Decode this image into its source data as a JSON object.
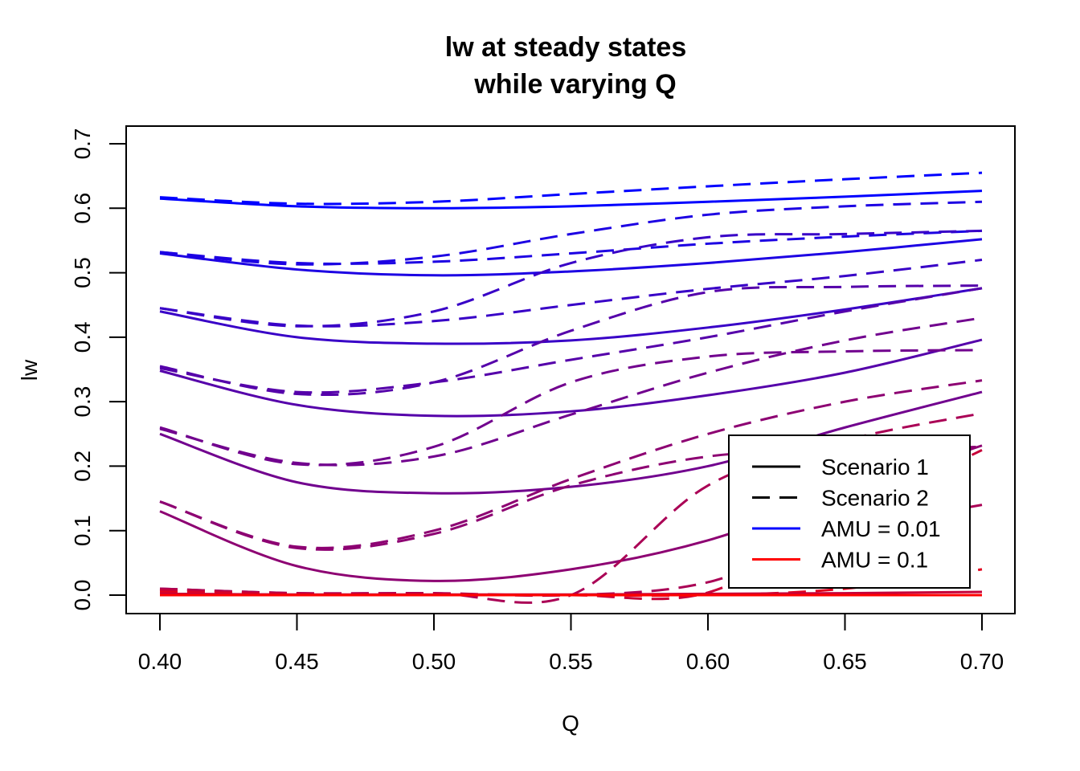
{
  "chart_data": {
    "type": "line",
    "title": "lw at steady states",
    "subtitle": "while varying Q",
    "xlabel": "Q",
    "ylabel": "lw",
    "xlim": [
      0.4,
      0.7
    ],
    "ylim": [
      0.0,
      0.7
    ],
    "x_ticks": [
      "0.40",
      "0.45",
      "0.50",
      "0.55",
      "0.60",
      "0.65",
      "0.70"
    ],
    "y_ticks": [
      "0.0",
      "0.1",
      "0.2",
      "0.3",
      "0.4",
      "0.5",
      "0.6",
      "0.7"
    ],
    "grid": false,
    "legend_position": "bottom-right",
    "legend": [
      {
        "label": "Scenario 1",
        "color": "#000000",
        "dash": "solid"
      },
      {
        "label": "Scenario 2",
        "color": "#000000",
        "dash": "dashed"
      },
      {
        "label": "AMU = 0.01",
        "color": "#0000FF",
        "dash": "solid"
      },
      {
        "label": "AMU = 0.1",
        "color": "#FF0000",
        "dash": "solid"
      }
    ],
    "x": [
      0.4,
      0.45,
      0.5,
      0.55,
      0.6,
      0.65,
      0.7
    ],
    "series": [
      {
        "amu": 0.01,
        "color": "#0000FF",
        "scenario": 1,
        "dash": "solid",
        "values": [
          0.615,
          0.603,
          0.6,
          0.603,
          0.61,
          0.618,
          0.627
        ]
      },
      {
        "amu": 0.01,
        "color": "#0000FF",
        "scenario": 2,
        "dash": "dashed",
        "values": [
          0.617,
          0.607,
          0.61,
          0.622,
          0.634,
          0.645,
          0.655
        ]
      },
      {
        "amu": 0.02,
        "color": "#1C00E3",
        "scenario": 1,
        "dash": "solid",
        "values": [
          0.53,
          0.505,
          0.496,
          0.502,
          0.515,
          0.532,
          0.552
        ]
      },
      {
        "amu": 0.02,
        "color": "#1C00E3",
        "scenario": 1,
        "dash": "dashed",
        "values": [
          0.532,
          0.515,
          0.517,
          0.53,
          0.545,
          0.556,
          0.565
        ]
      },
      {
        "amu": 0.02,
        "color": "#1C00E3",
        "scenario": 2,
        "dash": "dashed",
        "values": [
          0.532,
          0.513,
          0.525,
          0.56,
          0.59,
          0.603,
          0.61
        ]
      },
      {
        "amu": 0.03,
        "color": "#3800C7",
        "scenario": 1,
        "dash": "solid",
        "values": [
          0.44,
          0.4,
          0.39,
          0.395,
          0.415,
          0.443,
          0.476
        ]
      },
      {
        "amu": 0.03,
        "color": "#3800C7",
        "scenario": 1,
        "dash": "dashed",
        "values": [
          0.445,
          0.418,
          0.425,
          0.45,
          0.475,
          0.495,
          0.52
        ]
      },
      {
        "amu": 0.03,
        "color": "#3800C7",
        "scenario": 2,
        "dash": "dashed",
        "values": [
          0.445,
          0.417,
          0.44,
          0.515,
          0.555,
          0.56,
          0.565
        ]
      },
      {
        "amu": 0.04,
        "color": "#5500AA",
        "scenario": 1,
        "dash": "solid",
        "values": [
          0.348,
          0.295,
          0.278,
          0.285,
          0.31,
          0.345,
          0.396
        ]
      },
      {
        "amu": 0.04,
        "color": "#5500AA",
        "scenario": 1,
        "dash": "dashed",
        "values": [
          0.352,
          0.315,
          0.33,
          0.365,
          0.4,
          0.44,
          0.476
        ]
      },
      {
        "amu": 0.04,
        "color": "#5500AA",
        "scenario": 2,
        "dash": "dashed",
        "values": [
          0.355,
          0.312,
          0.33,
          0.41,
          0.47,
          0.478,
          0.48
        ]
      },
      {
        "amu": 0.05,
        "color": "#71008E",
        "scenario": 1,
        "dash": "solid",
        "values": [
          0.25,
          0.175,
          0.158,
          0.168,
          0.2,
          0.26,
          0.315
        ]
      },
      {
        "amu": 0.05,
        "color": "#71008E",
        "scenario": 1,
        "dash": "dashed",
        "values": [
          0.258,
          0.205,
          0.215,
          0.28,
          0.345,
          0.395,
          0.43
        ]
      },
      {
        "amu": 0.05,
        "color": "#71008E",
        "scenario": 2,
        "dash": "dashed",
        "values": [
          0.26,
          0.203,
          0.23,
          0.33,
          0.37,
          0.378,
          0.38
        ]
      },
      {
        "amu": 0.06,
        "color": "#8D0072",
        "scenario": 1,
        "dash": "solid",
        "values": [
          0.13,
          0.045,
          0.022,
          0.04,
          0.085,
          0.16,
          0.232
        ]
      },
      {
        "amu": 0.06,
        "color": "#8D0072",
        "scenario": 1,
        "dash": "dashed",
        "values": [
          0.145,
          0.075,
          0.1,
          0.18,
          0.25,
          0.3,
          0.333
        ]
      },
      {
        "amu": 0.06,
        "color": "#8D0072",
        "scenario": 2,
        "dash": "dashed",
        "values": [
          0.145,
          0.073,
          0.095,
          0.17,
          0.215,
          0.225,
          0.23
        ]
      },
      {
        "amu": 0.07,
        "color": "#AA0055",
        "scenario": 1,
        "dash": "dashed",
        "values": [
          0.01,
          0.003,
          0.003,
          0.0,
          0.17,
          0.24,
          0.282
        ]
      },
      {
        "amu": 0.07,
        "color": "#AA0055",
        "scenario": 2,
        "dash": "dashed",
        "values": [
          0.01,
          0.003,
          0.003,
          0.0,
          0.02,
          0.1,
          0.14
        ]
      },
      {
        "amu": 0.08,
        "color": "#C60039",
        "scenario": 1,
        "dash": "dashed",
        "values": [
          0.008,
          0.002,
          0.002,
          0.0,
          0.004,
          0.12,
          0.225
        ]
      },
      {
        "amu": 0.09,
        "color": "#E2001D",
        "scenario": 1,
        "dash": "dashed",
        "values": [
          0.005,
          0.001,
          0.001,
          0.0,
          0.0,
          0.01,
          0.04
        ]
      },
      {
        "amu": 0.08,
        "color": "#C60039",
        "scenario": 1,
        "dash": "solid",
        "values": [
          0.002,
          0.001,
          0.001,
          0.001,
          0.002,
          0.003,
          0.005
        ]
      },
      {
        "amu": 0.1,
        "color": "#FF0000",
        "scenario": 1,
        "dash": "solid",
        "values": [
          0.0,
          0.0,
          0.0,
          0.0,
          0.0,
          0.0,
          0.0
        ]
      },
      {
        "amu": 0.1,
        "color": "#FF0000",
        "scenario": 2,
        "dash": "dashed",
        "values": [
          0.0,
          0.0,
          0.0,
          0.0,
          0.0,
          0.0,
          0.0
        ]
      }
    ]
  }
}
